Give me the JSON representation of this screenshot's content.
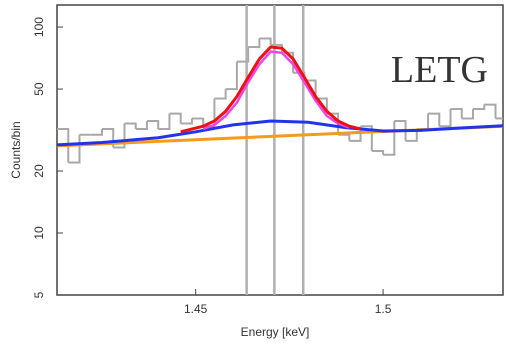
{
  "chart_data": {
    "type": "spectrum",
    "xlabel": "Energy [keV]",
    "ylabel": "Counts/bin",
    "annotation": "LETG",
    "annotation_color": "#f0900a",
    "xlim": [
      1.413,
      1.532
    ],
    "xticks": [
      1.45,
      1.5
    ],
    "ylim": [
      5,
      128
    ],
    "yticks": [
      5,
      10,
      20,
      50,
      100
    ],
    "log_y": true,
    "vlines": [
      1.4636,
      1.471,
      1.4787
    ],
    "vline_color": "#b0b0b0",
    "data": {
      "color": "#a8a8a8",
      "bins": [
        1.413,
        1.416,
        1.419,
        1.422,
        1.425,
        1.428,
        1.431,
        1.434,
        1.437,
        1.44,
        1.443,
        1.446,
        1.449,
        1.452,
        1.455,
        1.458,
        1.461,
        1.464,
        1.467,
        1.47,
        1.473,
        1.476,
        1.479,
        1.482,
        1.485,
        1.488,
        1.491,
        1.494,
        1.497,
        1.5,
        1.503,
        1.506,
        1.509,
        1.512,
        1.515,
        1.518,
        1.521,
        1.524,
        1.527,
        1.53,
        1.532
      ],
      "counts": [
        32,
        22,
        30,
        30,
        32,
        26,
        34,
        32,
        35,
        32,
        38,
        34,
        36,
        33,
        45,
        50,
        68,
        80,
        88,
        82,
        75,
        60,
        55,
        45,
        38,
        30,
        28,
        33,
        25,
        24,
        35,
        28,
        32,
        38,
        33,
        40,
        36,
        40,
        42,
        36
      ]
    },
    "series": [
      {
        "color": "#f59a1a",
        "width": 3,
        "x": [
          1.413,
          1.532
        ],
        "values": [
          26.5,
          33
        ]
      },
      {
        "color": "#2233ee",
        "width": 3,
        "x": [
          1.413,
          1.425,
          1.44,
          1.45,
          1.46,
          1.47,
          1.48,
          1.49,
          1.5,
          1.51,
          1.52,
          1.532
        ],
        "values": [
          26.8,
          27.5,
          29,
          31,
          33.5,
          35,
          34.5,
          32.5,
          31.3,
          31.5,
          32.3,
          33.2
        ]
      },
      {
        "color": "#ee44ee",
        "width": 2.5,
        "x": [
          1.452,
          1.455,
          1.458,
          1.461,
          1.464,
          1.467,
          1.47,
          1.473,
          1.476,
          1.479,
          1.482,
          1.485,
          1.488,
          1.491
        ],
        "values": [
          32,
          33.5,
          37,
          43,
          54,
          66,
          76,
          75,
          66,
          54,
          44,
          37,
          34,
          32.5
        ]
      },
      {
        "color": "#ee1111",
        "width": 3,
        "x": [
          1.446,
          1.452,
          1.455,
          1.458,
          1.461,
          1.464,
          1.467,
          1.47,
          1.473,
          1.476,
          1.479,
          1.482,
          1.485,
          1.488,
          1.491,
          1.494
        ],
        "values": [
          31,
          33,
          35,
          39,
          46,
          57,
          70,
          80,
          79,
          70,
          57,
          46,
          39,
          35,
          33,
          32
        ]
      }
    ]
  }
}
